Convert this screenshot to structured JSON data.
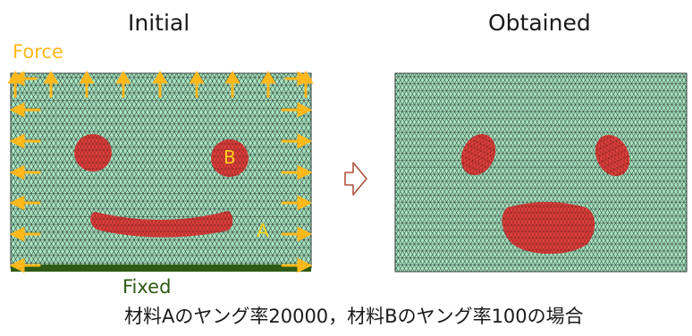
{
  "titles": {
    "initial": "Initial",
    "obtained": "Obtained"
  },
  "labels": {
    "force": "Force",
    "fixed": "Fixed",
    "material_a": "A",
    "material_b": "B"
  },
  "caption": "材料Aのヤング率20000，材料Bのヤング率100の場合",
  "colors": {
    "mesh_fill": "#a8e6c2",
    "mesh_line": "#2e3b34",
    "inclusion_fill": "#e0403c",
    "arrow": "#ffb81c",
    "fixed_bar": "#2e5a14",
    "process_arrow": "#b0523c"
  }
}
